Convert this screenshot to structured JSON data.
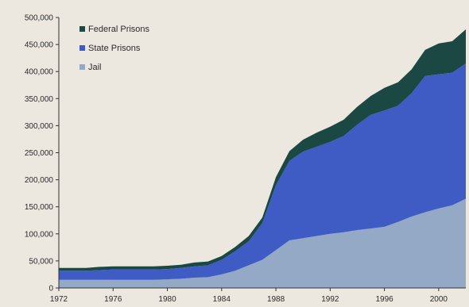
{
  "chart_data": {
    "type": "area",
    "stacked": true,
    "title": "",
    "xlabel": "",
    "ylabel": "",
    "xlim": [
      1972,
      2002
    ],
    "ylim": [
      0,
      500000
    ],
    "yticks": [
      0,
      50000,
      100000,
      150000,
      200000,
      250000,
      300000,
      350000,
      400000,
      450000,
      500000
    ],
    "ytick_labels": [
      "0",
      "50,000",
      "100,000",
      "150,000",
      "200,000",
      "250,000",
      "300,000",
      "350,000",
      "400,000",
      "450,000",
      "500,000"
    ],
    "xticks": [
      1972,
      1976,
      1980,
      1984,
      1988,
      1992,
      1996,
      2000
    ],
    "xtick_labels": [
      "1972",
      "1976",
      "1980",
      "1984",
      "1988",
      "1992",
      "1996",
      "2000"
    ],
    "grid": false,
    "legend_position": "top-left",
    "x": [
      1972,
      1973,
      1974,
      1975,
      1976,
      1977,
      1978,
      1979,
      1980,
      1981,
      1982,
      1983,
      1984,
      1985,
      1986,
      1987,
      1988,
      1989,
      1990,
      1991,
      1992,
      1993,
      1994,
      1995,
      1996,
      1997,
      1998,
      1999,
      2000,
      2001,
      2002
    ],
    "series": [
      {
        "name": "Jail",
        "color": "#93a9c6",
        "values": [
          15000,
          15000,
          15000,
          15000,
          15000,
          15000,
          15000,
          15000,
          16000,
          17000,
          19000,
          20000,
          25000,
          32000,
          42000,
          52000,
          70000,
          88000,
          92000,
          96000,
          100000,
          103000,
          107000,
          110000,
          113000,
          122000,
          132000,
          140000,
          147000,
          153000,
          165000
        ]
      },
      {
        "name": "State Prisons",
        "color": "#3f5bc4",
        "values": [
          17000,
          17000,
          17000,
          18000,
          19000,
          19000,
          19000,
          19000,
          19000,
          20000,
          21000,
          22000,
          27000,
          36000,
          44000,
          68000,
          120000,
          147000,
          160000,
          165000,
          170000,
          178000,
          195000,
          210000,
          215000,
          215000,
          228000,
          252000,
          248000,
          245000,
          250000
        ]
      },
      {
        "name": "Federal Prisons",
        "color": "#1c4843",
        "values": [
          5000,
          5000,
          5000,
          6000,
          6000,
          6000,
          6000,
          6000,
          6000,
          6000,
          7000,
          7000,
          7000,
          8000,
          10000,
          10000,
          15000,
          18000,
          22000,
          26000,
          28000,
          30000,
          33000,
          35000,
          42000,
          43000,
          44000,
          48000,
          57000,
          58000,
          63000
        ]
      }
    ],
    "legend_order": [
      "Federal Prisons",
      "State Prisons",
      "Jail"
    ]
  }
}
